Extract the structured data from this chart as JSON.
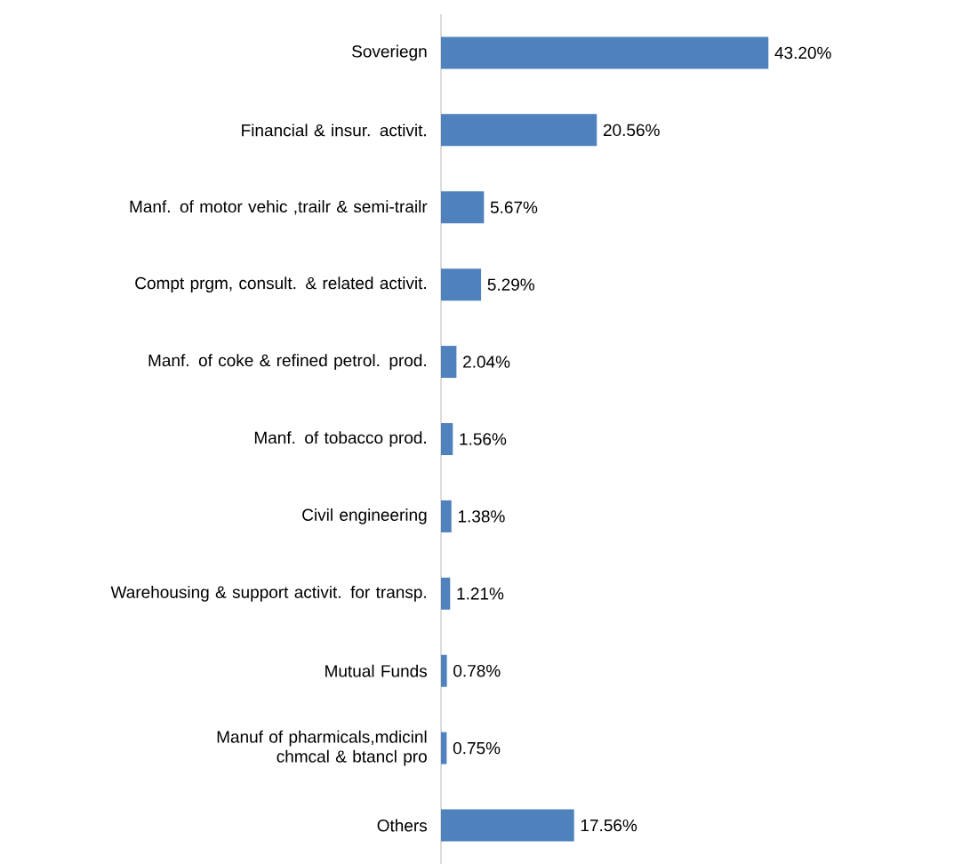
{
  "chart_data": {
    "type": "bar",
    "orientation": "horizontal",
    "categories": [
      "Soveriegn",
      "Financial & insur. activit.",
      "Manf. of motor vehic ,trailr & semi-trailr",
      "Compt prgm, consult. & related activit.",
      "Manf. of coke & refined petrol. prod.",
      "Manf. of tobacco prod.",
      "Civil engineering",
      "Warehousing & support activit. for transp.",
      "Mutual Funds",
      "Manuf of pharmicals,mdicinl chmcal & btancl pro",
      "Others"
    ],
    "values": [
      43.2,
      20.56,
      5.67,
      5.29,
      2.04,
      1.56,
      1.38,
      1.21,
      0.78,
      0.75,
      17.56
    ],
    "value_labels": [
      "43.20%",
      "20.56%",
      "5.67%",
      "5.29%",
      "2.04%",
      "1.56%",
      "1.38%",
      "1.21%",
      "0.78%",
      "0.75%",
      "17.56%"
    ],
    "color": "#4f81bd"
  }
}
